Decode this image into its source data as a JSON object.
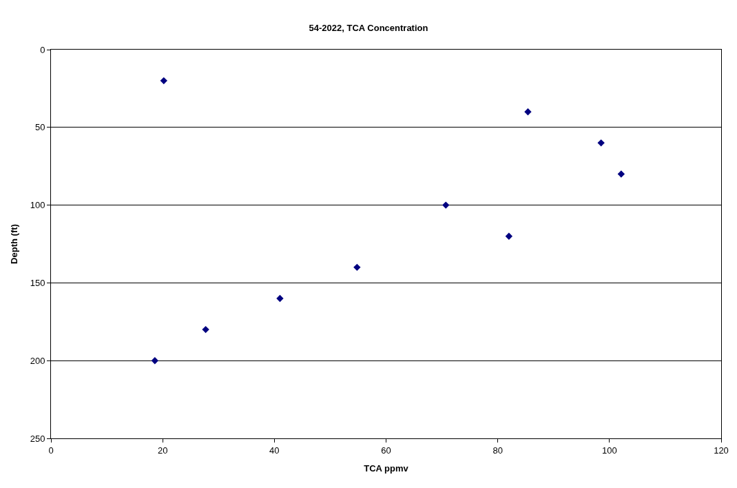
{
  "chart_data": {
    "type": "scatter",
    "title": "54-2022, TCA Concentration",
    "xlabel": "TCA ppmv",
    "ylabel": "Depth (ft)",
    "x": [
      20.2,
      85.4,
      98.5,
      102.1,
      70.7,
      82.0,
      54.8,
      41.0,
      27.7,
      18.6
    ],
    "series": [
      {
        "color": "#000080",
        "values": [
          20,
          40,
          60,
          80,
          100,
          120,
          140,
          160,
          180,
          200
        ]
      }
    ],
    "xlim": [
      0,
      120
    ],
    "xticks": [
      0,
      20,
      40,
      60,
      80,
      100,
      120
    ],
    "ylim": [
      250,
      0
    ],
    "yticks": [
      0,
      50,
      100,
      150,
      200,
      250
    ],
    "grid": "y",
    "marker": "diamond"
  }
}
